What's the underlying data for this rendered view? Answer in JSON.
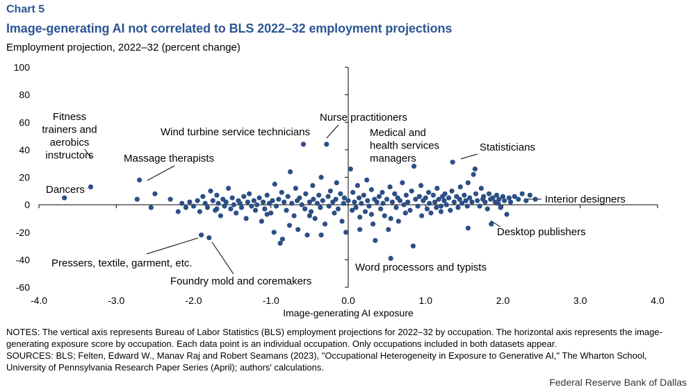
{
  "header": {
    "chart_label": "Chart 5",
    "title": "Image-generating AI not correlated to BLS 2022–32 employment projections"
  },
  "colors": {
    "accent": "#2c5593",
    "dot": "#2c4f85",
    "axis": "#000000"
  },
  "chart_data": {
    "type": "scatter",
    "title": "Image-generating AI not correlated to BLS 2022–32 employment projections",
    "xlabel": "Image-generating  AI exposure",
    "ylabel": "Employment projection, 2022–32 (percent change)",
    "xlim": [
      -4,
      4
    ],
    "ylim": [
      -60,
      100
    ],
    "x_ticks": [
      -4,
      -3,
      -2,
      -1,
      0,
      1,
      2,
      3,
      4
    ],
    "x_tick_labels": [
      "-4.0",
      "-3.0",
      "-2.0",
      "-1.0",
      "0.0",
      "1.0",
      "2.0",
      "3.0",
      "4.0"
    ],
    "y_ticks": [
      100,
      80,
      60,
      40,
      20,
      0,
      -20,
      -40,
      -60
    ],
    "y_tick_labels": [
      "100",
      "80",
      "60",
      "40",
      "20",
      "0",
      "-20",
      "-40",
      "-60"
    ],
    "grid": false,
    "annotations": [
      {
        "text": "Fitness\ntrainers and\naerobics\ninstructors",
        "x": -3.33,
        "y": 13
      },
      {
        "text": "Dancers",
        "x": -3.67,
        "y": 5
      },
      {
        "text": "Massage therapists",
        "x": -2.68,
        "y": 18
      },
      {
        "text": "Wind turbine service technicians",
        "x": -0.57,
        "y": 44
      },
      {
        "text": "Nurse practitioners",
        "x": -0.28,
        "y": 44
      },
      {
        "text": "Medical and\nhealth services\nmanagers",
        "x": 0.85,
        "y": 28
      },
      {
        "text": "Statisticians",
        "x": 1.35,
        "y": 31
      },
      {
        "text": "Interior designers",
        "x": 2.42,
        "y": 4
      },
      {
        "text": "Desktop publishers",
        "x": 1.85,
        "y": -14
      },
      {
        "text": "Pressers, textile, garment, etc.",
        "x": -1.9,
        "y": -22
      },
      {
        "text": "Foundry mold and coremakers",
        "x": -1.8,
        "y": -24
      },
      {
        "text": "Word processors and typists",
        "x": 0.52,
        "y": -39
      }
    ],
    "points": [
      [
        -3.67,
        5
      ],
      [
        -3.33,
        13
      ],
      [
        -2.7,
        18
      ],
      [
        -2.73,
        4
      ],
      [
        -2.55,
        -2
      ],
      [
        -2.5,
        8
      ],
      [
        -2.3,
        4
      ],
      [
        -2.2,
        -5
      ],
      [
        -2.15,
        1
      ],
      [
        -2.1,
        -2
      ],
      [
        -2.05,
        2
      ],
      [
        -2,
        -1
      ],
      [
        -1.95,
        3
      ],
      [
        -1.92,
        -5
      ],
      [
        -1.9,
        -22
      ],
      [
        -1.8,
        -24
      ],
      [
        -1.88,
        6
      ],
      [
        -1.85,
        1
      ],
      [
        -1.82,
        -2
      ],
      [
        -1.78,
        10
      ],
      [
        -1.75,
        3
      ],
      [
        -1.72,
        -4
      ],
      [
        -1.7,
        7
      ],
      [
        -1.68,
        1
      ],
      [
        -1.65,
        -8
      ],
      [
        -1.62,
        4
      ],
      [
        -1.6,
        -1
      ],
      [
        -1.58,
        2
      ],
      [
        -1.55,
        12
      ],
      [
        -1.52,
        -3
      ],
      [
        -1.5,
        5
      ],
      [
        -1.48,
        0
      ],
      [
        -1.45,
        -6
      ],
      [
        -1.42,
        3
      ],
      [
        -1.4,
        1
      ],
      [
        -1.38,
        -2
      ],
      [
        -1.35,
        6
      ],
      [
        -1.32,
        -10
      ],
      [
        -1.3,
        2
      ],
      [
        -1.28,
        8
      ],
      [
        -1.25,
        -1
      ],
      [
        -1.22,
        3
      ],
      [
        -1.2,
        -4
      ],
      [
        -1.18,
        0
      ],
      [
        -1.15,
        5
      ],
      [
        -1.12,
        -12
      ],
      [
        -1.1,
        2
      ],
      [
        -1.08,
        -3
      ],
      [
        -1.05,
        7
      ],
      [
        -1.02,
        1
      ],
      [
        -1,
        -6
      ],
      [
        -0.98,
        3
      ],
      [
        -0.96,
        -20
      ],
      [
        -0.95,
        15
      ],
      [
        -0.93,
        -1
      ],
      [
        -0.9,
        4
      ],
      [
        -0.88,
        -28
      ],
      [
        -0.86,
        9
      ],
      [
        -0.85,
        -25
      ],
      [
        -0.83,
        2
      ],
      [
        -0.8,
        -4
      ],
      [
        -0.78,
        6
      ],
      [
        -0.76,
        -15
      ],
      [
        -0.75,
        24
      ],
      [
        -0.73,
        1
      ],
      [
        -0.7,
        -8
      ],
      [
        -0.68,
        12
      ],
      [
        -0.66,
        3
      ],
      [
        -0.65,
        -18
      ],
      [
        -0.63,
        5
      ],
      [
        -0.6,
        0
      ],
      [
        -0.58,
        44
      ],
      [
        -0.56,
        -3
      ],
      [
        -0.55,
        8
      ],
      [
        -0.53,
        -22
      ],
      [
        -0.5,
        2
      ],
      [
        -0.48,
        -5
      ],
      [
        -0.46,
        14
      ],
      [
        -0.45,
        4
      ],
      [
        -0.43,
        -10
      ],
      [
        -0.4,
        1
      ],
      [
        -0.38,
        7
      ],
      [
        -0.36,
        -2
      ],
      [
        -0.35,
        20
      ],
      [
        -0.33,
        3
      ],
      [
        -0.3,
        -14
      ],
      [
        -0.28,
        44
      ],
      [
        -0.26,
        6
      ],
      [
        -0.25,
        -1
      ],
      [
        -0.23,
        10
      ],
      [
        -0.2,
        2
      ],
      [
        -0.18,
        -6
      ],
      [
        -0.16,
        4
      ],
      [
        -0.15,
        16
      ],
      [
        -0.13,
        -3
      ],
      [
        -0.1,
        8
      ],
      [
        -0.08,
        -12
      ],
      [
        -0.06,
        1
      ],
      [
        -0.05,
        5
      ],
      [
        -0.03,
        -20
      ],
      [
        0,
        3
      ],
      [
        0.03,
        26
      ],
      [
        0.05,
        -4
      ],
      [
        0.06,
        9
      ],
      [
        0.08,
        2
      ],
      [
        0.1,
        -2
      ],
      [
        0.12,
        14
      ],
      [
        0.14,
        5
      ],
      [
        0.15,
        -9
      ],
      [
        0.17,
        1
      ],
      [
        0.2,
        7
      ],
      [
        0.22,
        -5
      ],
      [
        0.24,
        18
      ],
      [
        0.25,
        3
      ],
      [
        0.27,
        -1
      ],
      [
        0.3,
        11
      ],
      [
        0.32,
        -14
      ],
      [
        0.34,
        4
      ],
      [
        0.35,
        -26
      ],
      [
        0.37,
        2
      ],
      [
        0.4,
        6
      ],
      [
        0.42,
        -3
      ],
      [
        0.44,
        9
      ],
      [
        0.45,
        1
      ],
      [
        0.47,
        -8
      ],
      [
        0.5,
        4
      ],
      [
        0.52,
        -18
      ],
      [
        0.54,
        13
      ],
      [
        0.55,
        -39
      ],
      [
        0.57,
        2
      ],
      [
        0.6,
        8
      ],
      [
        0.62,
        -2
      ],
      [
        0.64,
        5
      ],
      [
        0.65,
        -12
      ],
      [
        0.67,
        3
      ],
      [
        0.7,
        16
      ],
      [
        0.72,
        0
      ],
      [
        0.74,
        -6
      ],
      [
        0.75,
        7
      ],
      [
        0.77,
        2
      ],
      [
        0.8,
        -4
      ],
      [
        0.82,
        10
      ],
      [
        0.84,
        -30
      ],
      [
        0.85,
        28
      ],
      [
        0.87,
        4
      ],
      [
        0.9,
        -1
      ],
      [
        0.92,
        6
      ],
      [
        0.94,
        14
      ],
      [
        0.95,
        -8
      ],
      [
        0.97,
        3
      ],
      [
        1,
        5
      ],
      [
        1.02,
        -3
      ],
      [
        1.04,
        9
      ],
      [
        1.05,
        1
      ],
      [
        1.07,
        -6
      ],
      [
        1.1,
        7
      ],
      [
        1.12,
        2
      ],
      [
        1.14,
        -2
      ],
      [
        1.15,
        12
      ],
      [
        1.17,
        4
      ],
      [
        1.2,
        -1
      ],
      [
        1.22,
        6
      ],
      [
        1.24,
        3
      ],
      [
        1.25,
        8
      ],
      [
        1.27,
        0
      ],
      [
        1.3,
        5
      ],
      [
        1.32,
        -4
      ],
      [
        1.34,
        10
      ],
      [
        1.35,
        31
      ],
      [
        1.37,
        2
      ],
      [
        1.4,
        6
      ],
      [
        1.42,
        -2
      ],
      [
        1.44,
        4
      ],
      [
        1.45,
        13
      ],
      [
        1.47,
        1
      ],
      [
        1.5,
        7
      ],
      [
        1.52,
        3
      ],
      [
        1.54,
        -1
      ],
      [
        1.55,
        16
      ],
      [
        1.57,
        5
      ],
      [
        1.6,
        2
      ],
      [
        1.62,
        22
      ],
      [
        1.64,
        26
      ],
      [
        1.65,
        8
      ],
      [
        1.67,
        3
      ],
      [
        1.7,
        -1
      ],
      [
        1.72,
        12
      ],
      [
        1.74,
        4
      ],
      [
        1.75,
        6
      ],
      [
        1.77,
        2
      ],
      [
        1.8,
        -3
      ],
      [
        1.82,
        8
      ],
      [
        1.84,
        4
      ],
      [
        1.85,
        -14
      ],
      [
        1.87,
        5
      ],
      [
        1.9,
        2
      ],
      [
        1.92,
        7
      ],
      [
        1.94,
        1
      ],
      [
        1.95,
        4
      ],
      [
        1.97,
        -2
      ],
      [
        2,
        6
      ],
      [
        2.02,
        3
      ],
      [
        2.05,
        -7
      ],
      [
        2.08,
        5
      ],
      [
        2.1,
        2
      ],
      [
        2.15,
        6
      ],
      [
        2.2,
        4
      ],
      [
        2.25,
        8
      ],
      [
        2.3,
        3
      ],
      [
        2.35,
        7
      ],
      [
        2.42,
        4
      ],
      [
        1.55,
        -17
      ],
      [
        -0.35,
        -22
      ],
      [
        0.15,
        -18
      ],
      [
        -1.7,
        -3
      ],
      [
        -1.05,
        -7
      ],
      [
        0.55,
        -10
      ],
      [
        1.2,
        -5
      ],
      [
        -0.5,
        -8
      ],
      [
        0.3,
        -7
      ]
    ]
  },
  "notes": {
    "notes_text": "NOTES: The vertical axis represents Bureau of Labor Statistics (BLS) employment projections for 2022–32 by occupation. The horizontal axis represents the image-generating exposure score by occupation. Each data point is an individual occupation. Only occupations included in both datasets appear.",
    "sources_text": "SOURCES: BLS; Felten, Edward W., Manav Raj and Robert Seamans (2023), \"Occupational Heterogeneity in Exposure to Generative AI,\" The Wharton School, University of Pennsylvania Research Paper Series (April);  authors' calculations."
  },
  "credit": "Federal Reserve Bank of Dallas"
}
